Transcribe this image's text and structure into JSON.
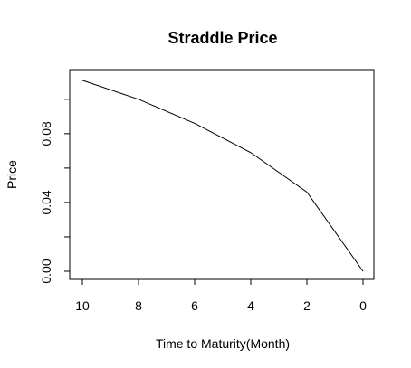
{
  "chart_data": {
    "type": "line",
    "title": "Straddle Price",
    "xlabel": "Time to Maturity(Month)",
    "ylabel": "Price",
    "x": [
      10,
      8,
      6,
      4,
      2,
      0
    ],
    "y": [
      0.111,
      0.1,
      0.086,
      0.069,
      0.046,
      0.0
    ],
    "xlim": [
      10,
      0
    ],
    "ylim": [
      0.0,
      0.112
    ],
    "x_ticks": [
      "10",
      "8",
      "6",
      "4",
      "2",
      "0"
    ],
    "x_tick_values": [
      10,
      8,
      6,
      4,
      2,
      0
    ],
    "y_tick_values": [
      0.0,
      0.02,
      0.04,
      0.06,
      0.08,
      0.1
    ],
    "y_tick_labels": [
      "0.00",
      "",
      "0.04",
      "",
      "0.08",
      ""
    ],
    "grid": false,
    "line_color": "#000000"
  }
}
